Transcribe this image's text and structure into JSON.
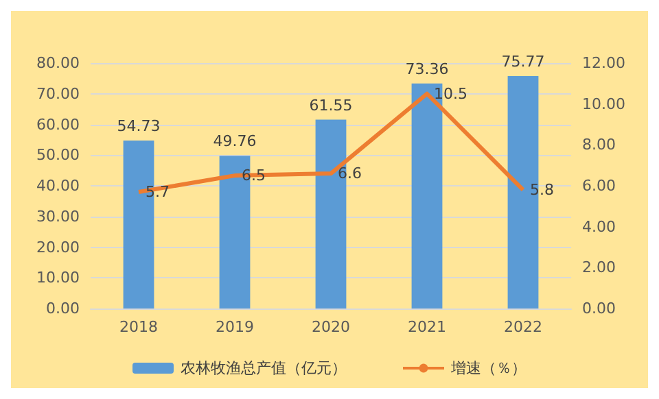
{
  "chart_data": {
    "type": "bar",
    "categories": [
      "2018",
      "2019",
      "2020",
      "2021",
      "2022"
    ],
    "series": [
      {
        "name": "农林牧渔总产值（亿元）",
        "color": "#5b9bd5",
        "values": [
          54.73,
          49.76,
          61.55,
          73.36,
          75.77
        ]
      },
      {
        "name": "增速（％）",
        "type": "line",
        "axis": "y2",
        "color": "#ed7d31",
        "values": [
          5.7,
          6.5,
          6.6,
          10.5,
          5.8
        ]
      }
    ],
    "ylim": [
      0,
      80
    ],
    "yticks": [
      {
        "value": 0,
        "label": "0.00"
      },
      {
        "value": 10,
        "label": "10.00"
      },
      {
        "value": 20,
        "label": "20.00"
      },
      {
        "value": 30,
        "label": "30.00"
      },
      {
        "value": 40,
        "label": "40.00"
      },
      {
        "value": 50,
        "label": "50.00"
      },
      {
        "value": 60,
        "label": "60.00"
      },
      {
        "value": 70,
        "label": "70.00"
      },
      {
        "value": 80,
        "label": "80.00"
      }
    ],
    "y2lim": [
      0,
      12
    ],
    "y2ticks": [
      {
        "value": 0,
        "label": "0.00"
      },
      {
        "value": 2,
        "label": "2.00"
      },
      {
        "value": 4,
        "label": "4.00"
      },
      {
        "value": 6,
        "label": "6.00"
      },
      {
        "value": 8,
        "label": "8.00"
      },
      {
        "value": 10,
        "label": "10.00"
      },
      {
        "value": 12,
        "label": "12.00"
      }
    ],
    "grid": "y",
    "legend": "bottom",
    "data_labels": true,
    "marker": "none"
  }
}
